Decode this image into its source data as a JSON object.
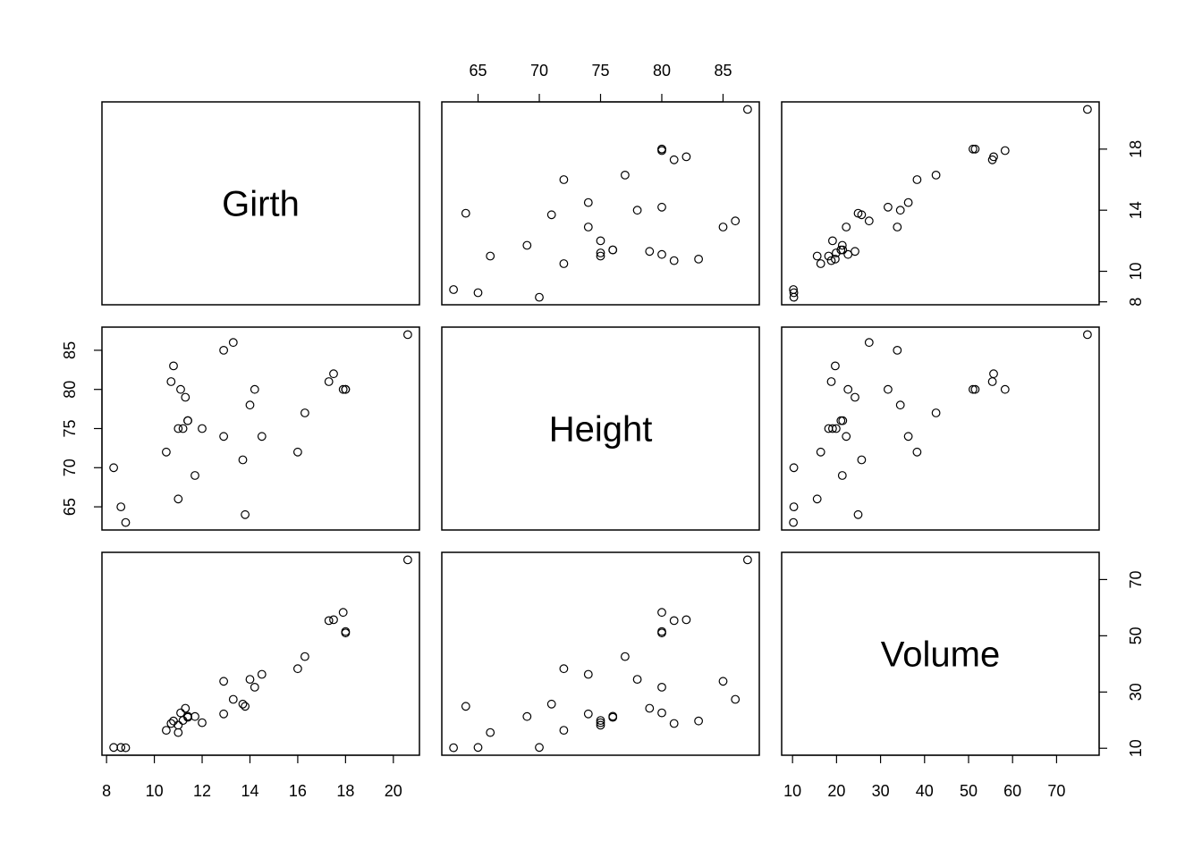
{
  "chart_data": {
    "type": "scatter",
    "kind": "pairs",
    "variables": [
      "Girth",
      "Height",
      "Volume"
    ],
    "panel_labels": [
      "Girth",
      "Height",
      "Volume"
    ],
    "axes": {
      "Girth": {
        "range": [
          8.3,
          20.6
        ],
        "ticks": [
          8,
          10,
          12,
          14,
          16,
          18,
          20
        ],
        "vertical_ticks": [
          8,
          10,
          14,
          18
        ]
      },
      "Height": {
        "range": [
          63,
          87
        ],
        "ticks": [
          65,
          70,
          75,
          80,
          85
        ]
      },
      "Volume": {
        "range": [
          10.2,
          77.0
        ],
        "ticks": [
          10,
          20,
          30,
          40,
          50,
          60,
          70
        ],
        "vertical_ticks": [
          10,
          30,
          50,
          70
        ]
      }
    },
    "points": {
      "Girth": [
        8.3,
        8.6,
        8.8,
        10.5,
        10.7,
        10.8,
        11.0,
        11.0,
        11.1,
        11.2,
        11.3,
        11.4,
        11.4,
        11.7,
        12.0,
        12.9,
        12.9,
        13.3,
        13.7,
        13.8,
        14.0,
        14.2,
        14.5,
        16.0,
        16.3,
        17.3,
        17.5,
        17.9,
        18.0,
        18.0,
        20.6
      ],
      "Height": [
        70,
        65,
        63,
        72,
        81,
        83,
        66,
        75,
        80,
        75,
        79,
        76,
        76,
        69,
        75,
        74,
        85,
        86,
        71,
        64,
        78,
        80,
        74,
        72,
        77,
        81,
        82,
        80,
        80,
        80,
        87
      ],
      "Volume": [
        10.3,
        10.3,
        10.2,
        16.4,
        18.8,
        19.7,
        15.6,
        18.2,
        22.6,
        19.9,
        24.2,
        21.0,
        21.4,
        21.3,
        19.1,
        22.2,
        33.8,
        27.4,
        25.7,
        24.9,
        34.5,
        31.7,
        36.3,
        38.3,
        42.6,
        55.4,
        55.7,
        58.3,
        51.5,
        51.0,
        77.0
      ]
    },
    "grid": false,
    "legend": "none"
  }
}
